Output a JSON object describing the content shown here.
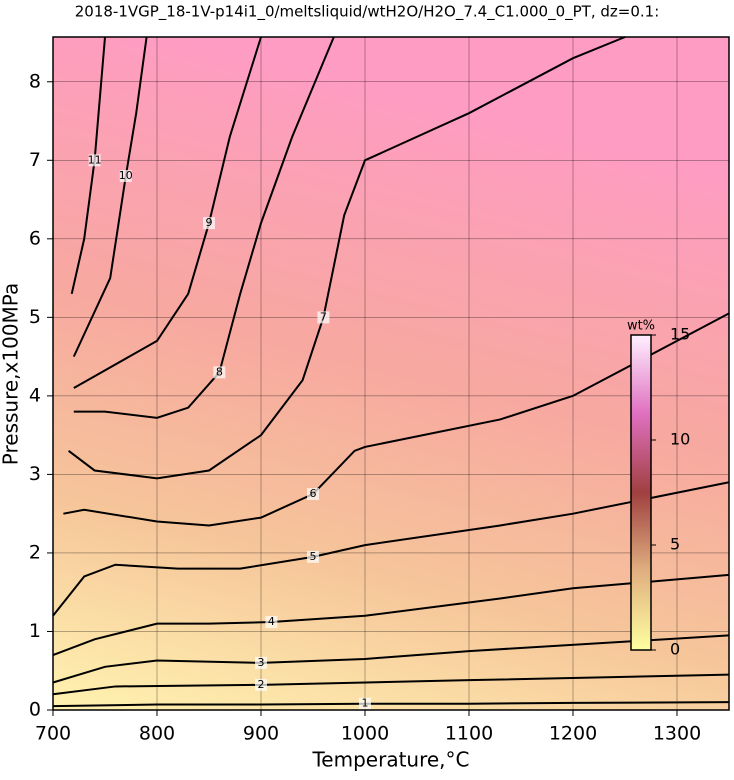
{
  "chart_data": {
    "type": "contour",
    "title": "2018-1VGP_18-1V-p14i1_0/meltsliquid/wtH2O/H2O_7.4_C1.000_0_PT, dz=0.1:",
    "x_label": "Temperature,°C",
    "y_label": "Pressure,x100MPa",
    "xlim": [
      700,
      1350
    ],
    "ylim": [
      0,
      8.57
    ],
    "xticks": [
      700,
      800,
      900,
      1000,
      1100,
      1200,
      1300
    ],
    "yticks": [
      0,
      1,
      2,
      3,
      4,
      5,
      6,
      7,
      8
    ],
    "grid": true,
    "contours": [
      {
        "level": 1,
        "x": [
          700,
          800,
          900,
          1000,
          1100,
          1200,
          1350
        ],
        "y": [
          0.05,
          0.07,
          0.07,
          0.08,
          0.08,
          0.09,
          0.1
        ]
      },
      {
        "level": 2,
        "x": [
          700,
          760,
          900,
          1100,
          1350
        ],
        "y": [
          0.2,
          0.3,
          0.32,
          0.38,
          0.45
        ]
      },
      {
        "level": 3,
        "x": [
          700,
          750,
          800,
          900,
          1000,
          1100,
          1350
        ],
        "y": [
          0.35,
          0.55,
          0.63,
          0.6,
          0.65,
          0.75,
          0.95
        ]
      },
      {
        "level": 4,
        "x": [
          700,
          740,
          800,
          850,
          910,
          1000,
          1130,
          1200,
          1350
        ],
        "y": [
          0.7,
          0.9,
          1.1,
          1.1,
          1.12,
          1.2,
          1.42,
          1.55,
          1.72
        ]
      },
      {
        "level": 5,
        "x": [
          700,
          730,
          760,
          820,
          880,
          950,
          1000,
          1130,
          1200,
          1350
        ],
        "y": [
          1.2,
          1.7,
          1.85,
          1.8,
          1.8,
          1.95,
          2.1,
          2.35,
          2.5,
          2.9
        ]
      },
      {
        "level": 6,
        "x": [
          710,
          730,
          800,
          850,
          900,
          950,
          990,
          1000,
          1130,
          1200,
          1350
        ],
        "y": [
          2.5,
          2.55,
          2.4,
          2.35,
          2.45,
          2.75,
          3.3,
          3.35,
          3.7,
          4.0,
          5.05
        ]
      },
      {
        "level": 7,
        "x": [
          715,
          740,
          800,
          850,
          900,
          940,
          960,
          980,
          1000,
          1100,
          1200,
          1250
        ],
        "y": [
          3.3,
          3.05,
          2.95,
          3.05,
          3.5,
          4.2,
          5.0,
          6.3,
          7.0,
          7.6,
          8.3,
          8.57
        ]
      },
      {
        "level": 8,
        "x": [
          720,
          750,
          800,
          830,
          860,
          880,
          900,
          930,
          970
        ],
        "y": [
          3.8,
          3.8,
          3.72,
          3.85,
          4.3,
          5.3,
          6.2,
          7.3,
          8.57
        ]
      },
      {
        "level": 9,
        "x": [
          720,
          800,
          830,
          850,
          870,
          900
        ],
        "y": [
          4.1,
          4.7,
          5.3,
          6.2,
          7.3,
          8.57
        ]
      },
      {
        "level": 10,
        "x": [
          720,
          755,
          770,
          780,
          790
        ],
        "y": [
          4.5,
          5.5,
          6.8,
          7.6,
          8.57
        ]
      },
      {
        "level": 11,
        "x": [
          718,
          730,
          740,
          750
        ],
        "y": [
          5.3,
          6.0,
          7.0,
          8.57
        ]
      }
    ],
    "colorbar": {
      "label": "wt%",
      "lim": [
        0,
        15
      ],
      "ticks": [
        0,
        5,
        10,
        15
      ],
      "colors": [
        "#ffffa0",
        "#e0b080",
        "#a04040",
        "#e070c0",
        "#fff0ff"
      ]
    }
  }
}
